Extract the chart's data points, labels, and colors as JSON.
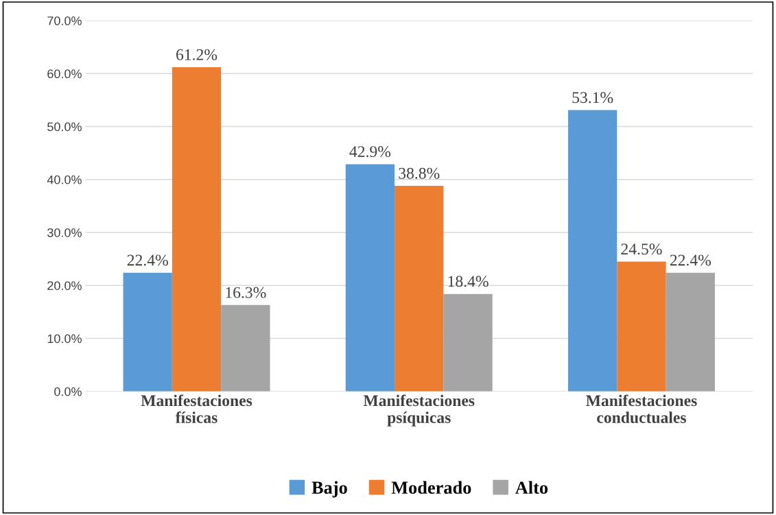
{
  "chart_data": {
    "type": "bar",
    "categories": [
      "Manifestaciones\nfísicas",
      "Manifestaciones\npsíquicas",
      "Manifestaciones\nconductuales"
    ],
    "series": [
      {
        "name": "Bajo",
        "color": "#5b9bd5",
        "values": [
          22.4,
          42.9,
          53.1
        ],
        "value_labels": [
          "22.4%",
          "42.9%",
          "53.1%"
        ]
      },
      {
        "name": "Moderado",
        "color": "#ed7d31",
        "values": [
          61.2,
          38.8,
          24.5
        ],
        "value_labels": [
          "61.2%",
          "38.8%",
          "24.5%"
        ]
      },
      {
        "name": "Alto",
        "color": "#a5a5a5",
        "values": [
          16.3,
          18.4,
          22.4
        ],
        "value_labels": [
          "16.3%",
          "18.4%",
          "22.4%"
        ]
      }
    ],
    "ylim": [
      0,
      70
    ],
    "yticks": [
      {
        "value": 0,
        "label": "0.0%"
      },
      {
        "value": 10,
        "label": "10.0%"
      },
      {
        "value": 20,
        "label": "20.0%"
      },
      {
        "value": 30,
        "label": "30.0%"
      },
      {
        "value": 40,
        "label": "40.0%"
      },
      {
        "value": 50,
        "label": "50.0%"
      },
      {
        "value": 60,
        "label": "60.0%"
      },
      {
        "value": 70,
        "label": "70.0%"
      }
    ],
    "grid": "y",
    "legend": "bottom"
  }
}
